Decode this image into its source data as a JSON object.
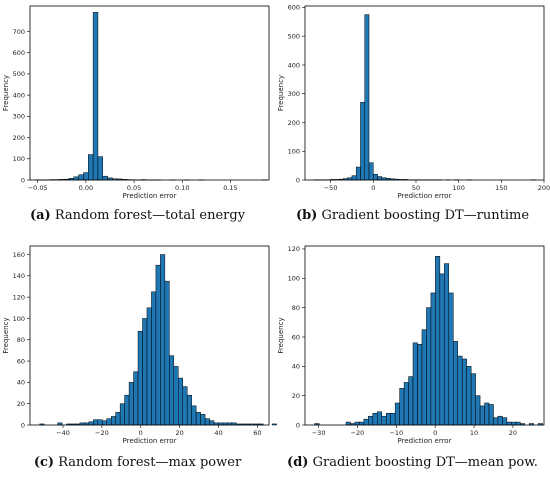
{
  "charts": [
    {
      "caption": {
        "tag": "(a)",
        "text": "Random forest—total energy"
      },
      "chart_data": {
        "type": "bar",
        "xlabel": "Prediction error",
        "ylabel": "Frequency",
        "xlim": [
          -0.058,
          0.19
        ],
        "ylim": [
          0,
          820
        ],
        "xticks": [
          -0.05,
          0.0,
          0.05,
          0.1,
          0.15
        ],
        "xtick_labels": [
          "−0.05",
          "0.00",
          "0.05",
          "0.10",
          "0.15"
        ],
        "yticks": [
          0,
          100,
          200,
          300,
          400,
          500,
          600,
          700
        ],
        "bin_start": -0.0525,
        "bin_width": 0.005,
        "values": [
          1,
          1,
          1,
          2,
          2,
          3,
          4,
          8,
          15,
          25,
          35,
          120,
          790,
          110,
          18,
          10,
          6,
          5,
          3,
          2,
          1,
          1,
          2,
          1,
          1,
          1,
          0,
          0,
          1,
          0,
          0,
          1,
          0,
          0,
          1,
          0,
          0,
          0,
          0,
          0,
          0,
          0,
          0,
          0,
          0,
          0,
          0,
          1
        ]
      }
    },
    {
      "caption": {
        "tag": "(b)",
        "text": "Gradient boosting DT—runtime"
      },
      "chart_data": {
        "type": "bar",
        "xlabel": "Prediction error",
        "ylabel": "Frequency",
        "xlim": [
          -80,
          200
        ],
        "ylim": [
          0,
          605
        ],
        "xticks": [
          -50,
          0,
          50,
          100,
          150,
          200
        ],
        "xtick_labels": [
          "−50",
          "0",
          "50",
          "100",
          "150",
          "200"
        ],
        "yticks": [
          0,
          100,
          200,
          300,
          400,
          500,
          600
        ],
        "bin_start": -70,
        "bin_width": 5,
        "values": [
          1,
          1,
          1,
          1,
          2,
          2,
          3,
          5,
          8,
          15,
          45,
          270,
          575,
          60,
          20,
          12,
          8,
          6,
          4,
          3,
          2,
          2,
          1,
          1,
          1,
          1,
          1,
          1,
          1,
          1,
          0,
          1,
          0,
          1,
          0,
          0,
          1,
          0,
          0,
          0,
          0,
          0,
          0,
          0,
          0,
          0,
          0,
          0,
          0,
          0,
          0,
          1
        ]
      }
    },
    {
      "caption": {
        "tag": "(c)",
        "text": "Random forest—max power"
      },
      "chart_data": {
        "type": "bar",
        "xlabel": "Prediction error",
        "ylabel": "Frequency",
        "xlim": [
          -57,
          66
        ],
        "ylim": [
          0,
          168
        ],
        "xticks": [
          -40,
          -20,
          0,
          20,
          40,
          60
        ],
        "xtick_labels": [
          "−40",
          "−20",
          "0",
          "20",
          "40",
          "60"
        ],
        "yticks": [
          0,
          20,
          40,
          60,
          80,
          100,
          120,
          140,
          160
        ],
        "bin_start": -52,
        "bin_width": 2.3,
        "values": [
          1,
          0,
          0,
          0,
          2,
          0,
          1,
          1,
          1,
          2,
          2,
          3,
          5,
          5,
          4,
          6,
          8,
          12,
          20,
          28,
          40,
          50,
          88,
          100,
          110,
          125,
          150,
          160,
          135,
          65,
          55,
          44,
          36,
          28,
          18,
          12,
          10,
          6,
          4,
          2,
          2,
          2,
          2,
          2,
          1,
          1,
          1,
          1,
          1,
          1,
          0,
          0,
          1
        ]
      }
    },
    {
      "caption": {
        "tag": "(d)",
        "text": "Gradient boosting DT—mean pow."
      },
      "chart_data": {
        "type": "bar",
        "xlabel": "Prediction error",
        "ylabel": "Frequency",
        "xlim": [
          -33.5,
          28
        ],
        "ylim": [
          0,
          122
        ],
        "xticks": [
          -30,
          -20,
          -10,
          0,
          10,
          20
        ],
        "xtick_labels": [
          "−30",
          "−20",
          "−10",
          "0",
          "10",
          "20"
        ],
        "yticks": [
          0,
          20,
          40,
          60,
          80,
          100,
          120
        ],
        "bin_start": -31,
        "bin_width": 1.15,
        "values": [
          1,
          0,
          0,
          0,
          0,
          0,
          0,
          2,
          1,
          2,
          2,
          4,
          6,
          8,
          9,
          6,
          8,
          8,
          15,
          25,
          29,
          33,
          56,
          55,
          65,
          80,
          90,
          115,
          103,
          110,
          90,
          57,
          47,
          45,
          40,
          35,
          20,
          13,
          15,
          14,
          5,
          6,
          5,
          2,
          2,
          2,
          1,
          0,
          1,
          0,
          1
        ]
      }
    }
  ]
}
